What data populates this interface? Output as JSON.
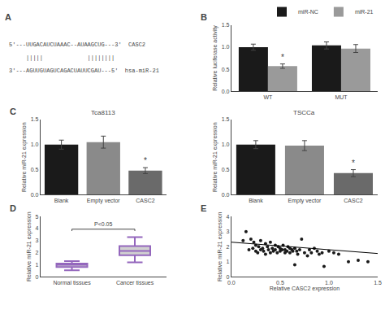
{
  "chart_data": [
    {
      "type": "text",
      "annotations": [
        {
          "text": "A",
          "kind": "panel_label"
        },
        {
          "text": "5'---UUGACAUCUAAAC--AUAAGCUG---3'  CASC2",
          "kind": "sequence"
        },
        {
          "text": "     |||||             ||||||||",
          "kind": "sequence"
        },
        {
          "text": "3'---AGUUGUAGUCAGACUAUUCGAU---5'  hsa-miR-21",
          "kind": "sequence"
        }
      ]
    },
    {
      "type": "bar",
      "categories": [
        "WT",
        "MUT"
      ],
      "series": [
        {
          "name": "miR-NC",
          "color": "#1a1a1a",
          "values": [
            1.0,
            1.04
          ],
          "errors": [
            0.07,
            0.08
          ]
        },
        {
          "name": "miR-21",
          "color": "#9a9a9a",
          "values": [
            0.57,
            0.97
          ],
          "errors": [
            0.05,
            0.09
          ]
        }
      ],
      "ylabel": "Relative luciferase activity",
      "ylim": [
        0,
        1.5
      ],
      "yticks": [
        {
          "value": 0,
          "label": "0.0"
        },
        0.5,
        {
          "value": 1,
          "label": "1.0"
        },
        1.5
      ],
      "legend": "upper right",
      "grid": false,
      "annotations": [
        {
          "text": "B",
          "kind": "panel_label"
        },
        {
          "text": "*",
          "kind": "mark",
          "category": "WT",
          "series": "miR-21"
        }
      ]
    },
    {
      "type": "bar",
      "title": "Tca8113",
      "categories": [
        "Blank",
        "Empty vector",
        "CASC2"
      ],
      "values": [
        1.0,
        1.05,
        0.48
      ],
      "errors": [
        0.09,
        0.12,
        0.06
      ],
      "colors": [
        "#1a1a1a",
        "#8a8a8a",
        "#6a6a6a"
      ],
      "ylabel": "Relative miR-21 expression",
      "ylim": [
        0,
        1.5
      ],
      "yticks": [
        {
          "value": 0,
          "label": "0.0"
        },
        0.5,
        {
          "value": 1,
          "label": "1.0"
        },
        1.5
      ],
      "grid": false,
      "annotations": [
        {
          "text": "C",
          "kind": "panel_label"
        },
        {
          "text": "*",
          "kind": "mark",
          "category": "CASC2"
        }
      ]
    },
    {
      "type": "bar",
      "title": "TSCCa",
      "categories": [
        "Blank",
        "Empty vector",
        "CASC2"
      ],
      "values": [
        1.0,
        0.98,
        0.43
      ],
      "errors": [
        0.08,
        0.1,
        0.07
      ],
      "colors": [
        "#1a1a1a",
        "#8a8a8a",
        "#6a6a6a"
      ],
      "ylabel": "Relative miR-21 expression",
      "ylim": [
        0,
        1.5
      ],
      "yticks": [
        {
          "value": 0,
          "label": "0.0"
        },
        0.5,
        {
          "value": 1,
          "label": "1.0"
        },
        1.5
      ],
      "grid": false,
      "annotations": [
        {
          "text": "*",
          "kind": "mark",
          "category": "CASC2"
        }
      ]
    },
    {
      "type": "box",
      "categories": [
        "Normal tissues",
        "Cancer tissues"
      ],
      "q1": [
        0.82,
        1.8
      ],
      "median": [
        1.0,
        2.15
      ],
      "q3": [
        1.1,
        2.55
      ],
      "whisker_low": [
        0.55,
        1.2
      ],
      "whisker_high": [
        1.3,
        3.3
      ],
      "color": "#d0d0d0",
      "ylabel": "Relative miR-21 expression",
      "ylim": [
        0,
        5
      ],
      "yticks": [
        0,
        1,
        2,
        3,
        4,
        5
      ],
      "grid": false,
      "annotations": [
        {
          "text": "D",
          "kind": "panel_label"
        },
        {
          "text": "P<0.05",
          "kind": "bracket",
          "between": [
            "Normal tissues",
            "Cancer tissues"
          ]
        }
      ]
    },
    {
      "type": "scatter",
      "series": [
        {
          "type": "scatter",
          "color": "#1a1a1a",
          "marker": "circle",
          "x": [
            0.12,
            0.15,
            0.18,
            0.2,
            0.22,
            0.23,
            0.25,
            0.25,
            0.27,
            0.28,
            0.3,
            0.3,
            0.32,
            0.33,
            0.35,
            0.35,
            0.37,
            0.38,
            0.4,
            0.4,
            0.42,
            0.43,
            0.45,
            0.45,
            0.47,
            0.48,
            0.5,
            0.5,
            0.52,
            0.53,
            0.55,
            0.55,
            0.57,
            0.58,
            0.6,
            0.6,
            0.62,
            0.63,
            0.65,
            0.65,
            0.67,
            0.68,
            0.7,
            0.72,
            0.75,
            0.78,
            0.8,
            0.82,
            0.85,
            0.88,
            0.9,
            0.93,
            0.95,
            1.0,
            1.05,
            1.1,
            1.2,
            1.3,
            1.4
          ],
          "values": [
            2.4,
            3.0,
            1.8,
            2.5,
            1.9,
            2.3,
            1.7,
            2.1,
            1.6,
            2.0,
            1.8,
            2.4,
            1.9,
            1.7,
            2.2,
            1.5,
            2.0,
            1.8,
            2.3,
            1.6,
            1.9,
            1.7,
            2.1,
            1.8,
            1.6,
            2.0,
            1.9,
            1.7,
            1.8,
            2.1,
            1.6,
            1.8,
            1.7,
            2.0,
            1.9,
            1.6,
            1.8,
            1.7,
            1.9,
            0.8,
            1.7,
            1.5,
            1.8,
            2.5,
            1.6,
            1.4,
            1.8,
            1.6,
            1.9,
            1.7,
            1.5,
            1.6,
            0.7,
            1.7,
            1.6,
            1.5,
            1.0,
            1.1,
            1.0
          ]
        },
        {
          "type": "line",
          "color": "#000000",
          "line_style": "solid",
          "x": [
            0.0,
            1.5
          ],
          "values": [
            2.3,
            1.55
          ]
        }
      ],
      "xlabel": "Relative CASC2 expression",
      "ylabel": "Relative miR-21 expression",
      "xlim": [
        0.0,
        1.5
      ],
      "xticks": [
        {
          "value": 0,
          "label": "0.0"
        },
        0.5,
        {
          "value": 1,
          "label": "1.0"
        },
        1.5
      ],
      "ylim": [
        0,
        4
      ],
      "yticks": [
        0,
        1,
        2,
        3,
        4
      ],
      "grid": false,
      "annotations": [
        {
          "text": "E",
          "kind": "panel_label"
        }
      ]
    }
  ]
}
